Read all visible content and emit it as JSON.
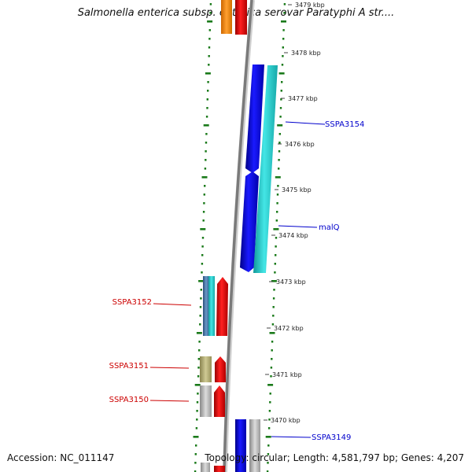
{
  "title": "Salmonella enterica subsp. enterica serovar Paratyphi A str....",
  "footer": {
    "accession": "Accession: NC_011147",
    "summary": "Topology: circular; Length: 4,581,797 bp; Genes: 4,207"
  },
  "scale_labels": [
    "3479 kbp",
    "3478 kbp",
    "3477 kbp",
    "3476 kbp",
    "3475 kbp",
    "3474 kbp",
    "3473 kbp",
    "3472 kbp",
    "3471 kbp",
    "3470 kbp"
  ],
  "gene_labels": [
    {
      "text": "SSPA3154",
      "color": "#0000cc"
    },
    {
      "text": "malQ",
      "color": "#0000cc"
    },
    {
      "text": "SSPA3152",
      "color": "#cc0000"
    },
    {
      "text": "SSPA3151",
      "color": "#cc0000"
    },
    {
      "text": "SSPA3150",
      "color": "#cc0000"
    },
    {
      "text": "SSPA3149",
      "color": "#0000cc"
    }
  ],
  "colors": {
    "backbone": "#808080",
    "gc_ticks": "#1a7a1a",
    "blue": "#0000ee",
    "cyan": "#22cccc",
    "red": "#ee0000",
    "orange": "#ff8800",
    "steel": "#4a78aa",
    "olive": "#b5b07a",
    "gray": "#bbbbbb",
    "forward_label": "#0000cc",
    "reverse_label": "#cc0000"
  }
}
